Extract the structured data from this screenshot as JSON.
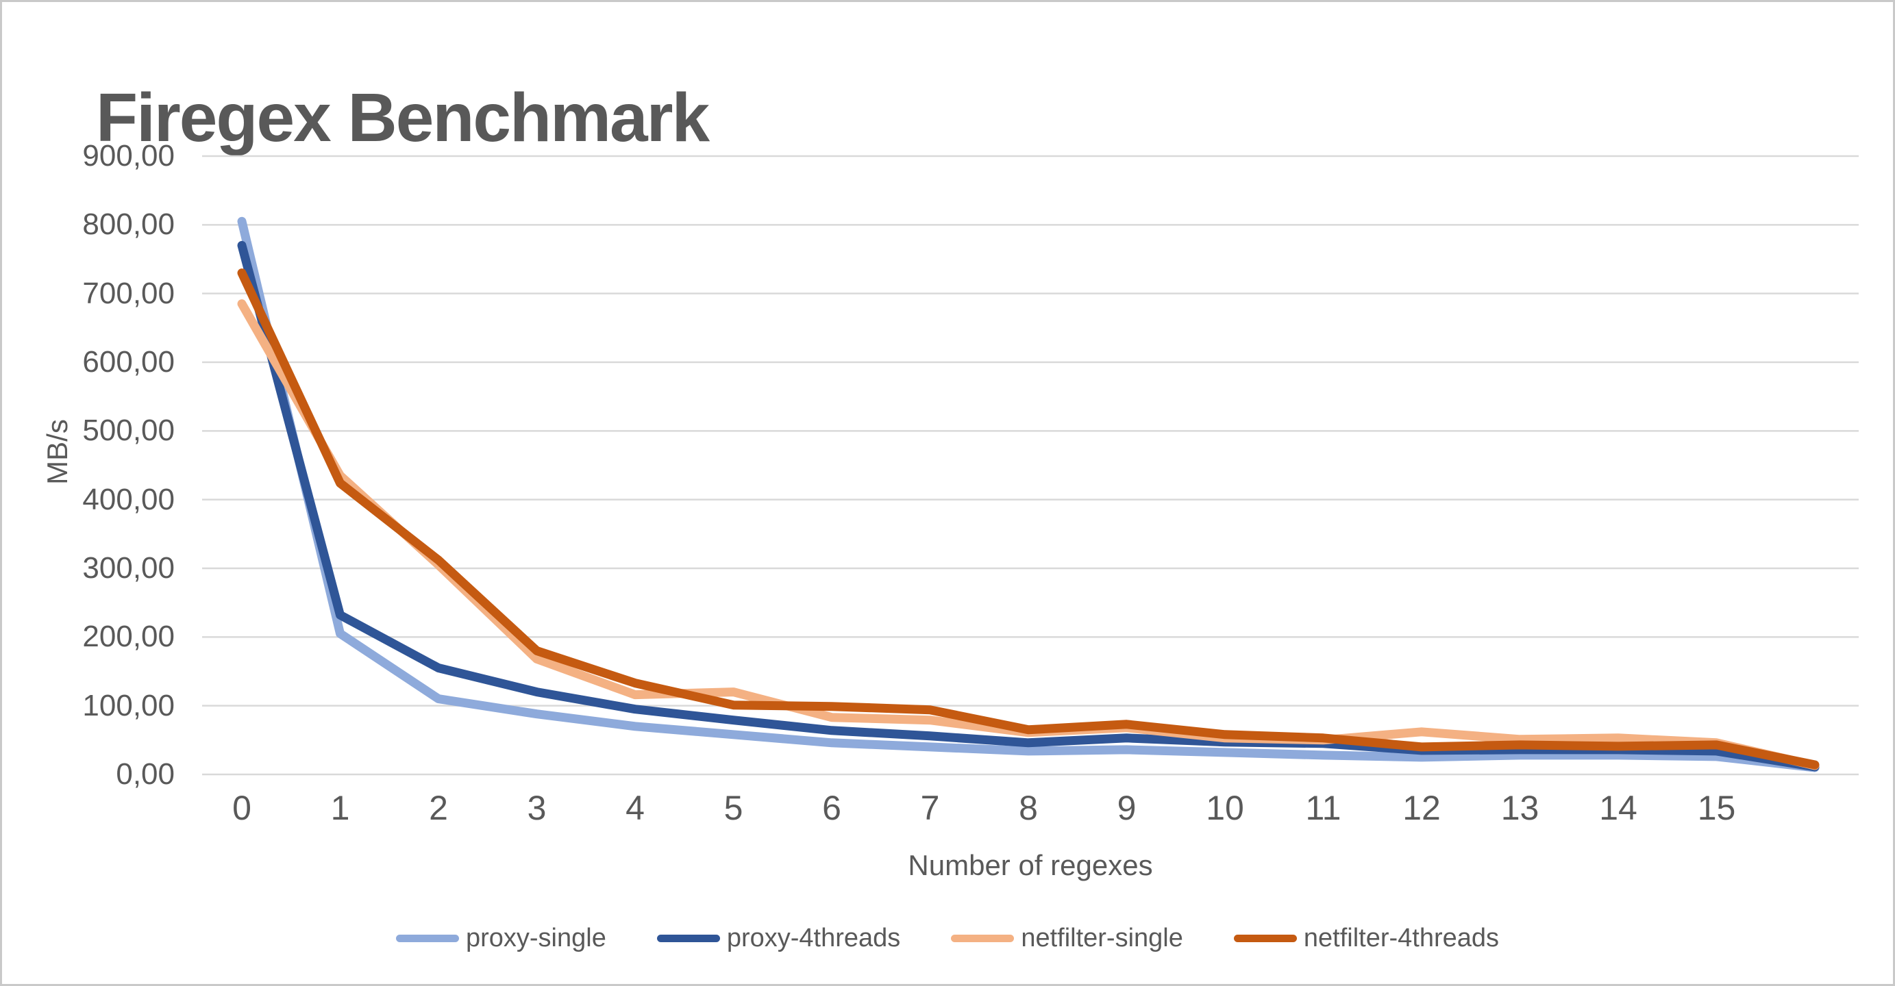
{
  "chart_data": {
    "type": "line",
    "title": "Firegex Benchmark",
    "xlabel": "Number of regexes",
    "ylabel": "MB/s",
    "ylim": [
      0,
      900
    ],
    "ytick_step": 100,
    "ytick_labels": [
      "0,00",
      "100,00",
      "200,00",
      "300,00",
      "400,00",
      "500,00",
      "600,00",
      "700,00",
      "800,00",
      "900,00"
    ],
    "categories": [
      "0",
      "1",
      "2",
      "3",
      "4",
      "5",
      "6",
      "7",
      "8",
      "9",
      "10",
      "11",
      "12",
      "13",
      "14",
      "15",
      ""
    ],
    "grid": "horizontal-only",
    "legend_position": "bottom",
    "series": [
      {
        "name": "proxy-single",
        "color": "#8EAADB",
        "values": [
          805,
          205,
          110,
          88,
          70,
          58,
          46,
          40,
          34,
          36,
          32,
          28,
          25,
          28,
          28,
          26,
          10
        ]
      },
      {
        "name": "proxy-4threads",
        "color": "#2F5597",
        "values": [
          770,
          232,
          155,
          120,
          95,
          79,
          64,
          56,
          46,
          53,
          47,
          45,
          35,
          36,
          36,
          34,
          11
        ]
      },
      {
        "name": "netfilter-single",
        "color": "#F4B183",
        "values": [
          685,
          435,
          305,
          168,
          116,
          120,
          83,
          79,
          61,
          68,
          53,
          50,
          62,
          51,
          53,
          46,
          13
        ]
      },
      {
        "name": "netfilter-4threads",
        "color": "#C55A11",
        "values": [
          730,
          424,
          312,
          180,
          133,
          101,
          99,
          94,
          65,
          73,
          58,
          53,
          40,
          43,
          41,
          43,
          14
        ]
      }
    ]
  },
  "colors": {
    "axis_text": "#595959",
    "title_text": "#595959",
    "gridline": "#D9D9D9",
    "background": "#FFFFFF",
    "frame_border": "#C9C9C9"
  }
}
